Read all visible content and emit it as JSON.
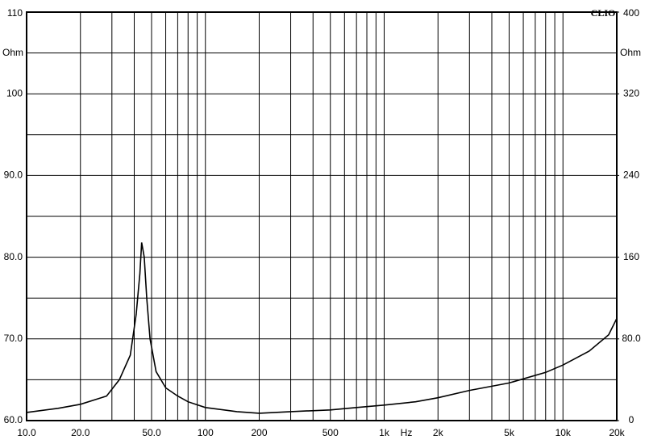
{
  "chart_data": {
    "type": "line",
    "brand": "CLIO",
    "x_label": "Hz",
    "y_unit": "Ohm",
    "y2_unit": "Ohm",
    "log_x": true,
    "grid": true,
    "x": [
      10,
      15,
      20,
      28,
      33,
      38,
      41,
      43,
      44,
      45.5,
      47,
      49,
      53,
      60,
      70,
      80,
      100,
      150,
      200,
      300,
      500,
      700,
      1000,
      1500,
      2000,
      3000,
      5000,
      8000,
      10000,
      14000,
      18000,
      20000
    ],
    "series": [
      {
        "color": "#000000",
        "values": [
          61.0,
          61.5,
          62.0,
          63.0,
          65.0,
          68.0,
          73.0,
          78.0,
          81.8,
          80.0,
          75.0,
          70.0,
          66.0,
          64.0,
          63.0,
          62.3,
          61.6,
          61.1,
          60.9,
          61.1,
          61.3,
          61.6,
          61.9,
          62.3,
          62.8,
          63.7,
          64.6,
          65.9,
          66.8,
          68.5,
          70.5,
          72.5
        ]
      }
    ],
    "xlim": [
      10,
      20000
    ],
    "xticks": [
      {
        "value": 10,
        "label": "10.0"
      },
      {
        "value": 20,
        "label": "20.0"
      },
      {
        "value": 50,
        "label": "50.0"
      },
      100,
      200,
      500,
      {
        "value": 1000,
        "label": "1k"
      },
      {
        "value": 2000,
        "label": "2k"
      },
      {
        "value": 5000,
        "label": "5k"
      },
      {
        "value": 10000,
        "label": "10k"
      },
      {
        "value": 20000,
        "label": "20k"
      }
    ],
    "xminor": [
      30,
      40,
      60,
      70,
      80,
      90,
      300,
      400,
      600,
      700,
      800,
      900,
      3000,
      4000,
      6000,
      7000,
      8000,
      9000
    ],
    "ylim": [
      60,
      110
    ],
    "yticks": [
      {
        "value": 60,
        "label": "60.0"
      },
      {
        "value": 70,
        "label": "70.0"
      },
      {
        "value": 80,
        "label": "80.0"
      },
      {
        "value": 90,
        "label": "90.0"
      },
      100,
      110
    ],
    "yminor": [
      65,
      75,
      85,
      95,
      105
    ],
    "y2lim": [
      0,
      400
    ],
    "y2ticks": [
      0,
      {
        "value": 80,
        "label": "80.0"
      },
      160,
      240,
      320,
      400
    ]
  }
}
